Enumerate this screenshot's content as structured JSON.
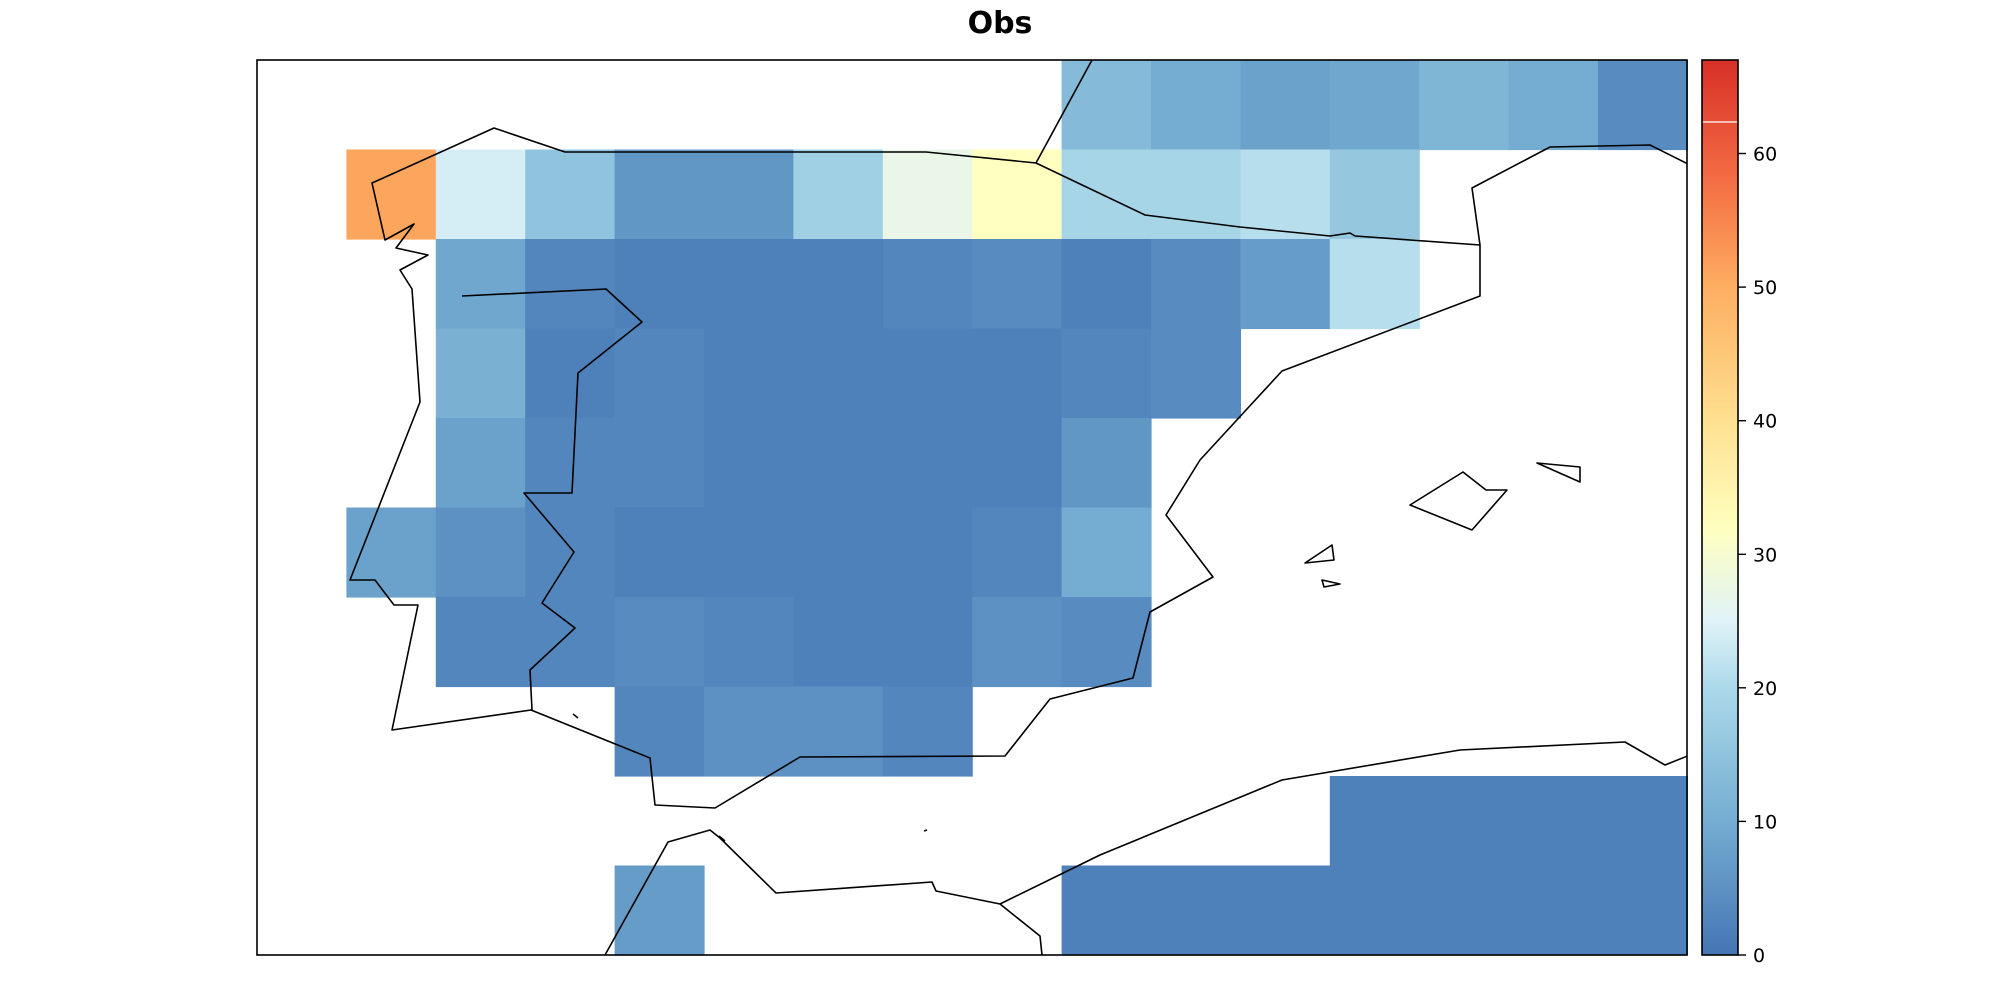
{
  "title": "Obs",
  "colorbar": {
    "min": 0,
    "max": 67,
    "ticks": [
      {
        "label": "0",
        "value": 0
      },
      {
        "label": "10",
        "value": 10
      },
      {
        "label": "20",
        "value": 20
      },
      {
        "label": "30",
        "value": 30
      },
      {
        "label": "40",
        "value": 40
      },
      {
        "label": "50",
        "value": 50
      },
      {
        "label": "60",
        "value": 60
      }
    ],
    "stops": [
      {
        "value": 0,
        "color": "#4575b4"
      },
      {
        "value": 10,
        "color": "#74add1"
      },
      {
        "value": 20,
        "color": "#abd9e9"
      },
      {
        "value": 25,
        "color": "#e0f3f8"
      },
      {
        "value": 32,
        "color": "#ffffbf"
      },
      {
        "value": 40,
        "color": "#fee090"
      },
      {
        "value": 50,
        "color": "#fdae61"
      },
      {
        "value": 58,
        "color": "#f46d43"
      },
      {
        "value": 67,
        "color": "#d73027"
      }
    ]
  },
  "chart_data": {
    "type": "heatmap",
    "title": "Obs",
    "colorbar_range": [
      0,
      67
    ],
    "grid_rows": 10,
    "grid_cols": 16,
    "values": [
      [
        null,
        null,
        null,
        null,
        null,
        null,
        null,
        null,
        null,
        13,
        10,
        8,
        9,
        12,
        10,
        4
      ],
      [
        null,
        51,
        24,
        15,
        6,
        6,
        18,
        27,
        32,
        19,
        19,
        21,
        16,
        null,
        null,
        null
      ],
      [
        null,
        null,
        9,
        3,
        2,
        2,
        2,
        3,
        4,
        2,
        4,
        7,
        21,
        null,
        null,
        null
      ],
      [
        null,
        null,
        11,
        2,
        3,
        2,
        2,
        2,
        2,
        3,
        4,
        null,
        null,
        null,
        null,
        null
      ],
      [
        null,
        null,
        8,
        3,
        3,
        2,
        2,
        2,
        2,
        6,
        null,
        null,
        null,
        null,
        null,
        null
      ],
      [
        null,
        8,
        5,
        3,
        2,
        2,
        2,
        2,
        3,
        10,
        null,
        null,
        null,
        null,
        null,
        null
      ],
      [
        null,
        null,
        3,
        3,
        4,
        3,
        2,
        2,
        5,
        4,
        null,
        null,
        null,
        null,
        null,
        null
      ],
      [
        null,
        null,
        null,
        null,
        3,
        5,
        5,
        3,
        null,
        null,
        null,
        null,
        null,
        null,
        null,
        null
      ],
      [
        null,
        null,
        null,
        null,
        null,
        null,
        null,
        null,
        null,
        null,
        null,
        null,
        2,
        2,
        2,
        2
      ],
      [
        null,
        null,
        null,
        null,
        7,
        null,
        null,
        null,
        null,
        2,
        2,
        2,
        2,
        2,
        2,
        2
      ]
    ]
  }
}
